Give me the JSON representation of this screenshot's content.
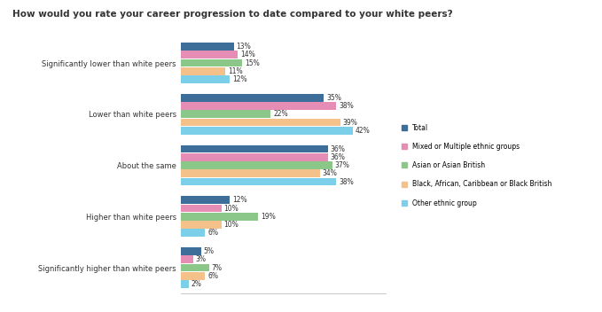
{
  "chart_data": {
    "type": "bar",
    "orientation": "horizontal",
    "title": "How would you rate your career progression to date compared to your white peers?",
    "categories": [
      "Significantly lower than white peers",
      "Lower than white peers",
      "About the same",
      "Higher than white peers",
      "Significantly higher than white peers"
    ],
    "series": [
      {
        "name": "Total",
        "color": "#3d6d99",
        "values": [
          13,
          35,
          36,
          12,
          5
        ],
        "value_labels": [
          "13%",
          "35%",
          "36%",
          "12%",
          "5%"
        ]
      },
      {
        "name": "Mixed or Multiple ethnic groups",
        "color": "#e68db5",
        "values": [
          14,
          38,
          36,
          10,
          3
        ],
        "value_labels": [
          "14%",
          "38%",
          "36%",
          "10%",
          "3%"
        ]
      },
      {
        "name": "Asian or Asian British",
        "color": "#8cc78a",
        "values": [
          15,
          22,
          37,
          19,
          7
        ],
        "value_labels": [
          "15%",
          "22%",
          "37%",
          "19%",
          "7%"
        ]
      },
      {
        "name": "Black, African, Caribbean or Black British",
        "color": "#f4c18b",
        "values": [
          11,
          39,
          34,
          10,
          6
        ],
        "value_labels": [
          "11%",
          "39%",
          "34%",
          "10%",
          "6%"
        ]
      },
      {
        "name": "Other ethnic group",
        "color": "#7ccfe8",
        "values": [
          12,
          42,
          38,
          6,
          2
        ],
        "value_labels": [
          "12%",
          "42%",
          "38%",
          "6%",
          "2%"
        ]
      }
    ],
    "xlim": [
      0,
      50
    ],
    "xticks": [],
    "tick_labels": "y",
    "data_labels": true,
    "legend": "right",
    "grid": false
  }
}
